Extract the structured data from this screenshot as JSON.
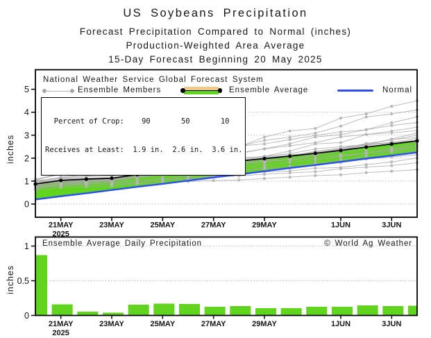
{
  "header": {
    "title": "US Soybeans Precipitation",
    "subtitle1": "Forecast Precipitation Compared to Normal (inches)",
    "subtitle2": "Production-Weighted Area Average",
    "subtitle3": "15-Day Forecast Beginning 20 May 2025"
  },
  "legend": {
    "source_note": "National Weather Service Global Forecast System",
    "members_label": "Ensemble Members",
    "average_label": "Ensemble Average",
    "normal_label": "Normal"
  },
  "percent_box": {
    "line1": "  Percent of Crop:    90       50       10",
    "line2": "Receives at Least:  1.9 in.  2.6 in.  3.6 in.",
    "percents": [
      "90",
      "50",
      "10"
    ],
    "amounts": [
      "1.9 in.",
      "2.6 in.",
      "3.6 in."
    ]
  },
  "colors": {
    "green": "#60d41e",
    "blue": "#2b4ff2",
    "tan": "#f0c98c",
    "member_line": "#a8a8a8",
    "member_dot": "#b6b6b6",
    "grid": "#9a9a9a",
    "black": "#000000"
  },
  "chart_data": [
    {
      "type": "line",
      "title": "Forecast cumulative precipitation vs normal",
      "ylabel": "inches",
      "ylim": [
        0,
        5
      ],
      "yticks": [
        0,
        1,
        2,
        3,
        4,
        5
      ],
      "gridlines": [
        0,
        1,
        2,
        3,
        4
      ],
      "categories": [
        "20MAY",
        "21MAY",
        "22MAY",
        "23MAY",
        "24MAY",
        "25MAY",
        "26MAY",
        "27MAY",
        "28MAY",
        "29MAY",
        "30MAY",
        "31MAY",
        "1JUN",
        "2JUN",
        "3JUN",
        "4JUN"
      ],
      "x_ticks": [
        {
          "day": 1,
          "label": "21MAY",
          "sublabel": "2025"
        },
        {
          "day": 3,
          "label": "23MAY"
        },
        {
          "day": 5,
          "label": "25MAY"
        },
        {
          "day": 7,
          "label": "27MAY"
        },
        {
          "day": 9,
          "label": "29MAY"
        },
        {
          "day": 12,
          "label": "1JUN"
        },
        {
          "day": 14,
          "label": "3JUN"
        }
      ],
      "series": [
        {
          "name": "Ensemble Average",
          "values": [
            0.87,
            1.03,
            1.085,
            1.125,
            1.28,
            1.45,
            1.615,
            1.74,
            1.875,
            1.98,
            2.085,
            2.21,
            2.335,
            2.48,
            2.615,
            2.755
          ]
        },
        {
          "name": "Normal",
          "values": [
            0.2,
            0.34,
            0.47,
            0.61,
            0.75,
            0.88,
            1.02,
            1.16,
            1.29,
            1.43,
            1.57,
            1.7,
            1.84,
            1.98,
            2.11,
            2.25
          ]
        }
      ],
      "members": {
        "count": 21,
        "starts": [
          0.62,
          0.68,
          0.72,
          0.75,
          0.78,
          0.8,
          0.82,
          0.84,
          0.86,
          0.88,
          0.9,
          0.92,
          0.94,
          0.96,
          0.98,
          1.0,
          1.02,
          1.04,
          1.06,
          1.08,
          0.7
        ],
        "finals": [
          1.5,
          1.8,
          2.0,
          2.15,
          2.3,
          2.4,
          2.5,
          2.55,
          2.65,
          2.7,
          2.75,
          2.85,
          2.9,
          3.0,
          3.1,
          3.2,
          3.35,
          3.55,
          3.8,
          4.1,
          4.5
        ]
      },
      "legend_position": "top-inside"
    },
    {
      "type": "bar",
      "title": "Ensemble Average Daily Precipitation",
      "watermark": "© World Ag Weather",
      "ylabel": "inches",
      "ylim": [
        0,
        1.13
      ],
      "yticks": [
        0,
        0.5,
        1
      ],
      "ytick_labels": [
        "0",
        "0.5",
        "1"
      ],
      "gridlines": [
        0.5,
        1
      ],
      "categories": [
        "20MAY",
        "21MAY",
        "22MAY",
        "23MAY",
        "24MAY",
        "25MAY",
        "26MAY",
        "27MAY",
        "28MAY",
        "29MAY",
        "30MAY",
        "31MAY",
        "1JUN",
        "2JUN",
        "3JUN",
        "4JUN"
      ],
      "x_ticks": [
        {
          "day": 1,
          "label": "21MAY",
          "sublabel": "2025"
        },
        {
          "day": 3,
          "label": "23MAY"
        },
        {
          "day": 5,
          "label": "25MAY"
        },
        {
          "day": 7,
          "label": "27MAY"
        },
        {
          "day": 9,
          "label": "29MAY"
        },
        {
          "day": 12,
          "label": "1JUN"
        },
        {
          "day": 14,
          "label": "3JUN"
        }
      ],
      "values": [
        0.87,
        0.16,
        0.055,
        0.04,
        0.155,
        0.17,
        0.165,
        0.125,
        0.135,
        0.105,
        0.105,
        0.125,
        0.125,
        0.145,
        0.135,
        0.14
      ]
    }
  ]
}
